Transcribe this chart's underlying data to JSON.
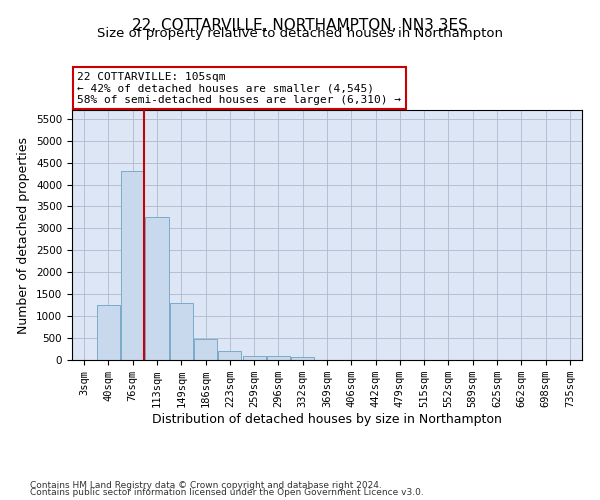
{
  "title": "22, COTTARVILLE, NORTHAMPTON, NN3 3ES",
  "subtitle": "Size of property relative to detached houses in Northampton",
  "xlabel": "Distribution of detached houses by size in Northampton",
  "ylabel": "Number of detached properties",
  "footnote1": "Contains HM Land Registry data © Crown copyright and database right 2024.",
  "footnote2": "Contains public sector information licensed under the Open Government Licence v3.0.",
  "annotation_title": "22 COTTARVILLE: 105sqm",
  "annotation_line1": "← 42% of detached houses are smaller (4,545)",
  "annotation_line2": "58% of semi-detached houses are larger (6,310) →",
  "bar_color": "#c8d9ed",
  "bar_edgecolor": "#7aaaca",
  "vline_color": "#cc0000",
  "vline_x": 2.48,
  "categories": [
    "3sqm",
    "40sqm",
    "76sqm",
    "113sqm",
    "149sqm",
    "186sqm",
    "223sqm",
    "259sqm",
    "296sqm",
    "332sqm",
    "369sqm",
    "406sqm",
    "442sqm",
    "479sqm",
    "515sqm",
    "552sqm",
    "589sqm",
    "625sqm",
    "662sqm",
    "698sqm",
    "735sqm"
  ],
  "values": [
    0,
    1250,
    4300,
    3250,
    1300,
    470,
    200,
    100,
    80,
    60,
    0,
    0,
    0,
    0,
    0,
    0,
    0,
    0,
    0,
    0,
    0
  ],
  "ylim": [
    0,
    5700
  ],
  "yticks": [
    0,
    500,
    1000,
    1500,
    2000,
    2500,
    3000,
    3500,
    4000,
    4500,
    5000,
    5500
  ],
  "ax_facecolor": "#dce6f5",
  "background_color": "#ffffff",
  "grid_color": "#b0b8cc",
  "title_fontsize": 11,
  "subtitle_fontsize": 9.5,
  "axis_label_fontsize": 9,
  "tick_fontsize": 7.5,
  "footnote_fontsize": 6.5,
  "annot_fontsize": 8
}
